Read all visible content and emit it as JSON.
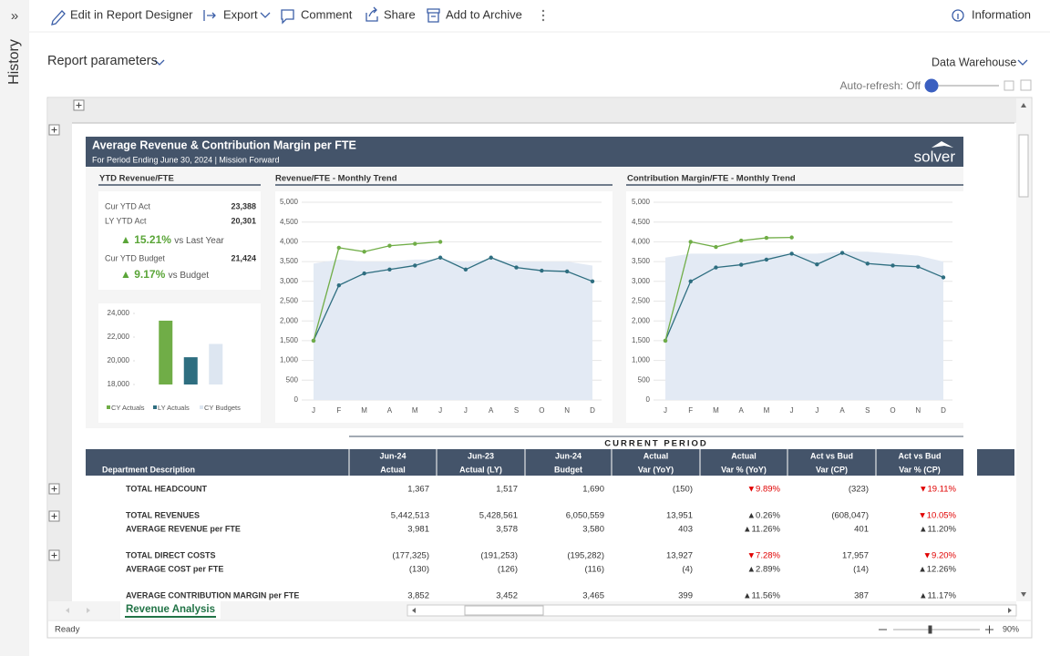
{
  "sidebar": {
    "expand": "»",
    "label": "History"
  },
  "toolbar": {
    "items": [
      "Edit in Report Designer",
      "Export",
      "Comment",
      "Share",
      "Add to Archive"
    ],
    "info": "Information"
  },
  "params": {
    "label": "Report parameters",
    "source": "Data Warehouse",
    "auto_refresh": "Auto-refresh: Off"
  },
  "report": {
    "title": "Average Revenue & Contribution Margin per FTE",
    "subtitle": "For Period Ending June 30, 2024 | Mission Forward",
    "logo": "solver",
    "kpi": {
      "title": "YTD Revenue/FTE",
      "rows": [
        [
          "Cur YTD Act",
          "23,388"
        ],
        [
          "LY YTD Act",
          "20,301"
        ]
      ],
      "change1": "▲ 15.21%",
      "change1_label": "vs Last Year",
      "budget": [
        "Cur YTD Budget",
        "21,424"
      ],
      "change2": "▲ 9.17%",
      "change2_label": "vs Budget"
    },
    "section": "CURRENT PERIOD",
    "table": {
      "header_first": "Department Description",
      "columns": [
        [
          "Jun-24",
          "Actual"
        ],
        [
          "Jun-23",
          "Actual (LY)"
        ],
        [
          "Jun-24",
          "Budget"
        ],
        [
          "Actual",
          "Var (YoY)"
        ],
        [
          "Actual",
          "Var % (YoY)"
        ],
        [
          "Act vs Bud",
          "Var (CP)"
        ],
        [
          "Act vs Bud",
          "Var % (CP)"
        ]
      ],
      "rows": [
        {
          "label": "TOTAL HEADCOUNT",
          "cells": [
            "1,367",
            "1,517",
            "1,690",
            "(150)",
            "▼9.89%",
            "(323)",
            "▼19.11%"
          ]
        },
        {
          "label": "TOTAL REVENUES",
          "cells": [
            "5,442,513",
            "5,428,561",
            "6,050,559",
            "13,951",
            "▲0.26%",
            "(608,047)",
            "▼10.05%"
          ]
        },
        {
          "label": "AVERAGE REVENUE per FTE",
          "cells": [
            "3,981",
            "3,578",
            "3,580",
            "403",
            "▲11.26%",
            "401",
            "▲11.20%"
          ]
        },
        {
          "label": "TOTAL DIRECT COSTS",
          "cells": [
            "(177,325)",
            "(191,253)",
            "(195,282)",
            "13,927",
            "▼7.28%",
            "17,957",
            "▼9.20%"
          ]
        },
        {
          "label": "AVERAGE COST per FTE",
          "cells": [
            "(130)",
            "(126)",
            "(116)",
            "(4)",
            "▲2.89%",
            "(14)",
            "▲12.26%"
          ]
        },
        {
          "label": "AVERAGE CONTRIBUTION MARGIN per FTE",
          "cells": [
            "3,852",
            "3,452",
            "3,465",
            "399",
            "▲11.56%",
            "387",
            "▲11.17%"
          ]
        }
      ]
    }
  },
  "sheet": {
    "tab": "Revenue Analysis",
    "status": "Ready",
    "zoom": "90%"
  },
  "chart_data": [
    {
      "type": "bar",
      "categories": [
        "CY Actuals",
        "LY Actuals",
        "CY Budgets"
      ],
      "values": [
        23388,
        20301,
        21424
      ],
      "colors": [
        "#70ad47",
        "#2e6e80",
        "#dde6f1"
      ],
      "ylim": [
        18000,
        24000
      ],
      "yticks": [
        {
          "value": 18000,
          "label": "18,000"
        },
        {
          "value": 20000,
          "label": "20,000"
        },
        {
          "value": 22000,
          "label": "22,000"
        },
        {
          "value": 24000,
          "label": "24,000"
        }
      ],
      "legend": "bottom"
    },
    {
      "type": "line",
      "title": "Revenue/FTE - Monthly Trend",
      "categories": [
        "J",
        "F",
        "M",
        "A",
        "M",
        "J",
        "J",
        "A",
        "S",
        "O",
        "N",
        "D"
      ],
      "series": [
        {
          "color": "#e3eaf4",
          "area": true,
          "values": [
            3450,
            3550,
            3500,
            3500,
            3550,
            3550,
            3500,
            3550,
            3500,
            3500,
            3500,
            3400
          ]
        },
        {
          "color": "#2e6e80",
          "values": [
            1500,
            2900,
            3200,
            3300,
            3400,
            3600,
            3300,
            3600,
            3350,
            3270,
            3250,
            3000
          ]
        },
        {
          "color": "#70ad47",
          "values": [
            1500,
            3850,
            3750,
            3900,
            3950,
            4000,
            null,
            null,
            null,
            null,
            null,
            null
          ]
        }
      ],
      "ylim": [
        0,
        5000
      ],
      "yticks": [
        0,
        500,
        {
          "value": 1000,
          "label": "1,000"
        },
        {
          "value": 1500,
          "label": "1,500"
        },
        {
          "value": 2000,
          "label": "2,000"
        },
        {
          "value": 2500,
          "label": "2,500"
        },
        {
          "value": 3000,
          "label": "3,000"
        },
        {
          "value": 3500,
          "label": "3,500"
        },
        {
          "value": 4000,
          "label": "4,000"
        },
        {
          "value": 4500,
          "label": "4,500"
        },
        {
          "value": 5000,
          "label": "5,000"
        }
      ],
      "grid": true
    },
    {
      "type": "line",
      "title": "Contribution Margin/FTE - Monthly Trend",
      "categories": [
        "J",
        "F",
        "M",
        "A",
        "M",
        "J",
        "J",
        "A",
        "S",
        "O",
        "N",
        "D"
      ],
      "series": [
        {
          "color": "#e3eaf4",
          "area": true,
          "values": [
            3600,
            3700,
            3700,
            3700,
            3700,
            3700,
            3700,
            3750,
            3750,
            3700,
            3650,
            3500
          ]
        },
        {
          "color": "#2e6e80",
          "values": [
            1500,
            3000,
            3350,
            3420,
            3550,
            3700,
            3430,
            3720,
            3450,
            3400,
            3370,
            3100
          ]
        },
        {
          "color": "#70ad47",
          "values": [
            1500,
            4000,
            3870,
            4030,
            4100,
            4110,
            null,
            null,
            null,
            null,
            null,
            null
          ]
        }
      ],
      "ylim": [
        0,
        5000
      ],
      "yticks": [
        0,
        500,
        {
          "value": 1000,
          "label": "1,000"
        },
        {
          "value": 1500,
          "label": "1,500"
        },
        {
          "value": 2000,
          "label": "2,000"
        },
        {
          "value": 2500,
          "label": "2,500"
        },
        {
          "value": 3000,
          "label": "3,000"
        },
        {
          "value": 3500,
          "label": "3,500"
        },
        {
          "value": 4000,
          "label": "4,000"
        },
        {
          "value": 4500,
          "label": "4,500"
        },
        {
          "value": 5000,
          "label": "5,000"
        }
      ],
      "grid": true
    }
  ]
}
